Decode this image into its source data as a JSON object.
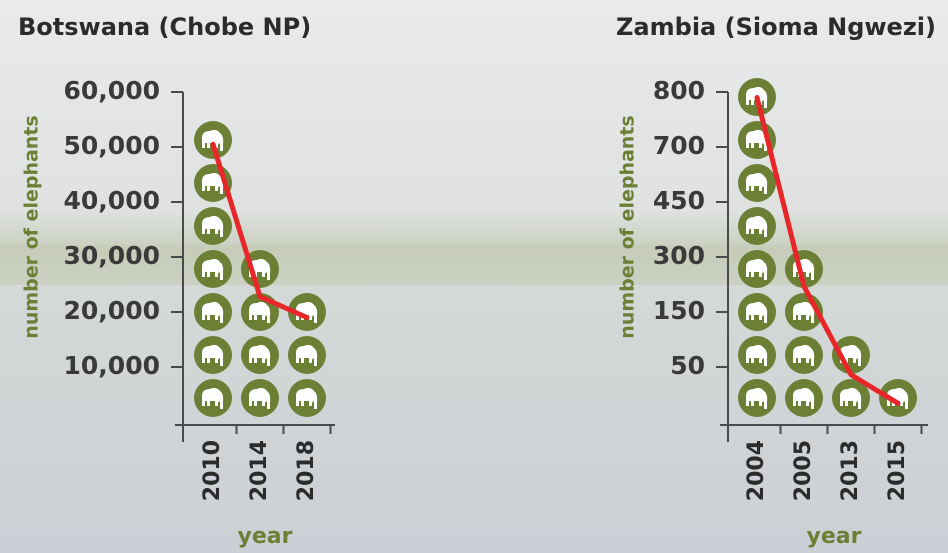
{
  "chart_data": [
    {
      "type": "line",
      "title": "Botswana (Chobe NP)",
      "y_label": "number of elephants",
      "x_label": "year",
      "categories": [
        "2010",
        "2014",
        "2018"
      ],
      "series": [
        {
          "color": "#e8262a",
          "values": [
            50500,
            22800,
            19000
          ]
        }
      ],
      "ylim": [
        0,
        60000
      ],
      "yticks": [
        {
          "value": 10000,
          "label": "10,000"
        },
        {
          "value": 20000,
          "label": "20,000"
        },
        {
          "value": 30000,
          "label": "30,000"
        },
        {
          "value": 40000,
          "label": "40,000"
        },
        {
          "value": 50000,
          "label": "50,000"
        },
        {
          "value": 60000,
          "label": "60,000"
        }
      ],
      "icon_color": "#6b7f35"
    },
    {
      "type": "line",
      "title": "Zambia (Sioma Ngwezi)",
      "y_label": "number of elephants",
      "x_label": "year",
      "categories": [
        "2004",
        "2005",
        "2013",
        "2015"
      ],
      "series": [
        {
          "color": "#e8262a",
          "values": [
            790,
            220,
            43,
            17
          ]
        }
      ],
      "ylim": [
        0,
        800
      ],
      "yticks": [
        50,
        150,
        300,
        450,
        700,
        800
      ],
      "icon_color": "#6b7f35"
    }
  ]
}
